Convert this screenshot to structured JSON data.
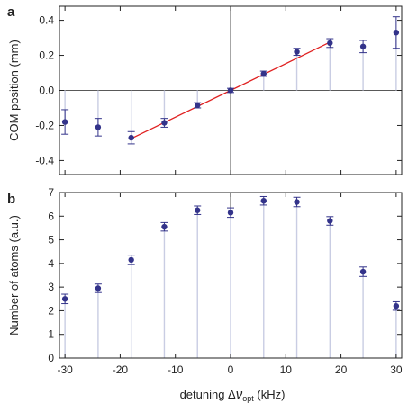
{
  "colors": {
    "marker": "#33338a",
    "fit": "#e02020",
    "stem": "#c9cde3",
    "axis": "#222222"
  },
  "xlabel_prefix": "detuning Δ",
  "xlabel_nu": "ν",
  "xlabel_sub": "opt",
  "xlabel_suffix": " (kHz)",
  "chart_data": [
    {
      "type": "scatter",
      "panel_label": "a",
      "ylabel": "COM position (mm)",
      "xlim": [
        -31,
        31
      ],
      "ylim": [
        -0.48,
        0.48
      ],
      "yticks": [
        -0.4,
        -0.2,
        0.0,
        0.2,
        0.4
      ],
      "ytick_labels": [
        "-0.4",
        "-0.2",
        "0.0",
        "0.2",
        "0.4"
      ],
      "xticks": [
        -30,
        -20,
        -10,
        0,
        10,
        20,
        30
      ],
      "x": [
        -30,
        -24,
        -18,
        -12,
        -6,
        0,
        6,
        12,
        18,
        24,
        30
      ],
      "y": [
        -0.18,
        -0.21,
        -0.27,
        -0.185,
        -0.085,
        0.0,
        0.095,
        0.22,
        0.27,
        0.25,
        0.33
      ],
      "yerr": [
        0.07,
        0.05,
        0.035,
        0.025,
        0.015,
        0.012,
        0.015,
        0.02,
        0.025,
        0.035,
        0.09
      ],
      "stem_baseline": 0,
      "fit_line": {
        "x": [
          -18,
          18
        ],
        "y": [
          -0.275,
          0.275
        ]
      }
    },
    {
      "type": "scatter",
      "panel_label": "b",
      "ylabel": "Number of atoms (a.u.)",
      "xlabel": "detuning Δν_opt (kHz)",
      "xlim": [
        -31,
        31
      ],
      "ylim": [
        0,
        7
      ],
      "yticks": [
        0,
        1,
        2,
        3,
        4,
        5,
        6,
        7
      ],
      "ytick_labels": [
        "0",
        "1",
        "2",
        "3",
        "4",
        "5",
        "6",
        "7"
      ],
      "xticks": [
        -30,
        -20,
        -10,
        0,
        10,
        20,
        30
      ],
      "xtick_labels": [
        "-30",
        "-20",
        "-10",
        "0",
        "10",
        "20",
        "30"
      ],
      "x": [
        -30,
        -24,
        -18,
        -12,
        -6,
        0,
        6,
        12,
        18,
        24,
        30
      ],
      "y": [
        2.5,
        2.95,
        4.15,
        5.55,
        6.25,
        6.15,
        6.65,
        6.6,
        5.8,
        3.65,
        2.2
      ],
      "yerr": [
        0.2,
        0.18,
        0.2,
        0.18,
        0.18,
        0.2,
        0.18,
        0.2,
        0.18,
        0.2,
        0.18
      ],
      "stem_baseline": 0
    }
  ]
}
